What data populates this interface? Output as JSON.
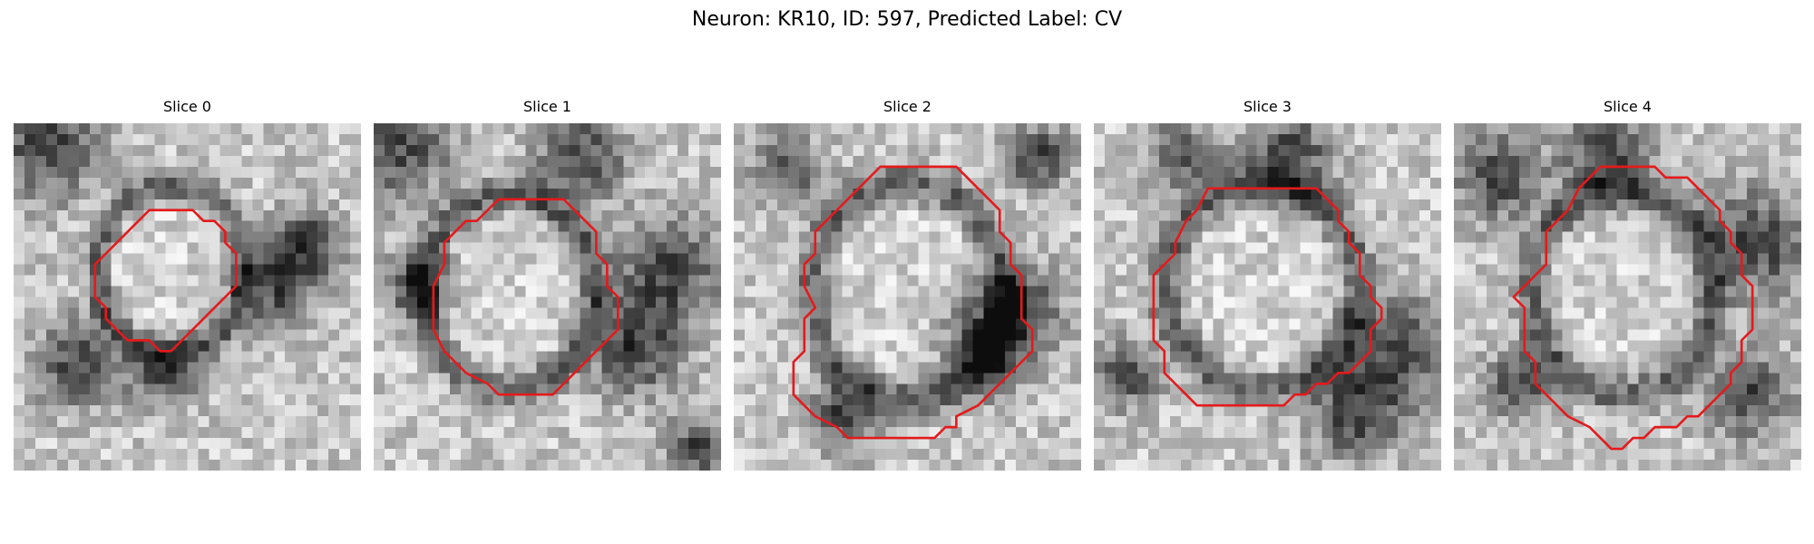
{
  "figure": {
    "title": "Neuron: KR10, ID: 597, Predicted Label: CV"
  },
  "panels": [
    {
      "title": "Slice 0",
      "contour_color": "#e41a1c",
      "background": "grayscale EM noise"
    },
    {
      "title": "Slice 1",
      "contour_color": "#e41a1c",
      "background": "grayscale EM noise"
    },
    {
      "title": "Slice 2",
      "contour_color": "#e41a1c",
      "background": "grayscale EM noise"
    },
    {
      "title": "Slice 3",
      "contour_color": "#e41a1c",
      "background": "grayscale EM noise"
    },
    {
      "title": "Slice 4",
      "contour_color": "#e41a1c",
      "background": "grayscale EM noise"
    }
  ]
}
